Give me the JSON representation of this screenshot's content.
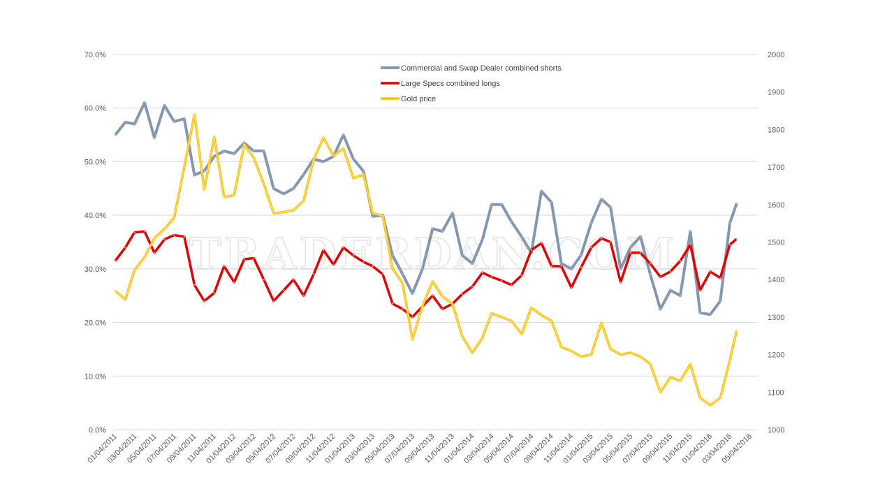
{
  "watermark": "TRADERDAN.COM",
  "chart_data": {
    "type": "line",
    "title": "",
    "xlabel": "",
    "ylabel": "",
    "y_left": {
      "lim": [
        0,
        70
      ],
      "ticks": [
        "0.0%",
        "10.0%",
        "20.0%",
        "30.0%",
        "40.0%",
        "50.0%",
        "60.0%",
        "70.0%"
      ]
    },
    "y_right": {
      "lim": [
        1000,
        2000
      ],
      "ticks": [
        "1000",
        "1100",
        "1200",
        "1300",
        "1400",
        "1500",
        "1600",
        "1700",
        "1800",
        "1900",
        "2000"
      ]
    },
    "x_ticks": [
      "01/04/2011",
      "03/04/2011",
      "05/04/2011",
      "07/04/2011",
      "09/04/2011",
      "11/04/2011",
      "01/04/2012",
      "03/04/2012",
      "05/04/2012",
      "07/04/2012",
      "09/04/2012",
      "11/04/2012",
      "01/04/2013",
      "03/04/2013",
      "05/04/2013",
      "07/04/2013",
      "09/04/2013",
      "11/04/2013",
      "01/04/2014",
      "03/04/2014",
      "05/04/2014",
      "07/04/2014",
      "09/04/2014",
      "11/04/2014",
      "01/04/2015",
      "03/04/2015",
      "05/04/2015",
      "07/04/2015",
      "09/04/2015",
      "11/04/2015",
      "01/04/2016",
      "03/04/2016",
      "05/04/2016"
    ],
    "grid": true,
    "legend_position": "top-center",
    "x": [
      "2011-01-04",
      "2011-02-04",
      "2011-03-04",
      "2011-04-04",
      "2011-05-04",
      "2011-06-04",
      "2011-07-04",
      "2011-08-04",
      "2011-09-04",
      "2011-10-04",
      "2011-11-04",
      "2011-12-04",
      "2012-01-04",
      "2012-02-04",
      "2012-03-04",
      "2012-04-04",
      "2012-05-04",
      "2012-06-04",
      "2012-07-04",
      "2012-08-04",
      "2012-09-04",
      "2012-10-04",
      "2012-11-04",
      "2012-12-04",
      "2013-01-04",
      "2013-02-04",
      "2013-03-04",
      "2013-04-04",
      "2013-05-04",
      "2013-06-04",
      "2013-07-04",
      "2013-08-04",
      "2013-09-04",
      "2013-10-04",
      "2013-11-04",
      "2013-12-04",
      "2014-01-04",
      "2014-02-04",
      "2014-03-04",
      "2014-04-04",
      "2014-05-04",
      "2014-06-04",
      "2014-07-04",
      "2014-08-04",
      "2014-09-04",
      "2014-10-04",
      "2014-11-04",
      "2014-12-04",
      "2015-01-04",
      "2015-02-04",
      "2015-03-04",
      "2015-04-04",
      "2015-05-04",
      "2015-06-04",
      "2015-07-04",
      "2015-08-04",
      "2015-09-04",
      "2015-10-04",
      "2015-11-04",
      "2015-12-04",
      "2016-01-04",
      "2016-02-04",
      "2016-03-04",
      "2016-03-25"
    ],
    "series": [
      {
        "name": "Commercial and Swap Dealer combined shorts",
        "axis": "left",
        "color": "#8497b0",
        "values": [
          55,
          57.4,
          57,
          61,
          54.5,
          60.5,
          57.5,
          58,
          47.5,
          48.3,
          51,
          52,
          51.5,
          53.5,
          52,
          52,
          45,
          44,
          45,
          47.6,
          50.5,
          50,
          51,
          55,
          50.5,
          48.2,
          39.8,
          40,
          32.5,
          29,
          25.4,
          30,
          37.5,
          37,
          40.4,
          32.5,
          31,
          35.5,
          42,
          42,
          38.8,
          36,
          33,
          44.5,
          42.4,
          31,
          30,
          32.6,
          38.6,
          43,
          41.5,
          30,
          34,
          36,
          29,
          22.5,
          26,
          25,
          37,
          21.8,
          21.5,
          24,
          38.5,
          42.2
        ]
      },
      {
        "name": "Large Specs combined longs",
        "axis": "left",
        "color": "#e00000",
        "values": [
          31.5,
          34,
          36.8,
          37,
          33,
          35.5,
          36.3,
          36,
          27,
          24,
          25.5,
          30.5,
          27.5,
          31.8,
          32,
          28,
          24,
          26,
          28,
          25,
          29,
          33.5,
          30.8,
          34,
          32.5,
          31.3,
          30.5,
          29,
          23.5,
          22.5,
          21,
          23,
          25,
          22.5,
          23.5,
          25.3,
          26.7,
          29.3,
          28.5,
          27.8,
          27,
          28.8,
          33.5,
          34.8,
          30.5,
          30.5,
          26.5,
          30.3,
          34,
          35.7,
          35,
          27.5,
          33,
          33,
          31,
          28.5,
          29.5,
          31.5,
          34.5,
          26,
          29.5,
          28.3,
          34.5,
          35.6
        ]
      },
      {
        "name": "Gold price",
        "axis": "right",
        "color": "#ffc000",
        "values": [
          1370,
          1347,
          1425,
          1460,
          1510,
          1535,
          1565,
          1700,
          1840,
          1640,
          1780,
          1620,
          1625,
          1760,
          1725,
          1655,
          1577,
          1580,
          1585,
          1610,
          1720,
          1778,
          1730,
          1750,
          1670,
          1680,
          1577,
          1570,
          1430,
          1390,
          1240,
          1330,
          1395,
          1355,
          1335,
          1248,
          1205,
          1245,
          1310,
          1300,
          1290,
          1255,
          1325,
          1305,
          1290,
          1220,
          1210,
          1195,
          1200,
          1285,
          1215,
          1200,
          1205,
          1195,
          1175,
          1100,
          1140,
          1130,
          1175,
          1085,
          1065,
          1085,
          1185,
          1264
        ]
      }
    ]
  }
}
